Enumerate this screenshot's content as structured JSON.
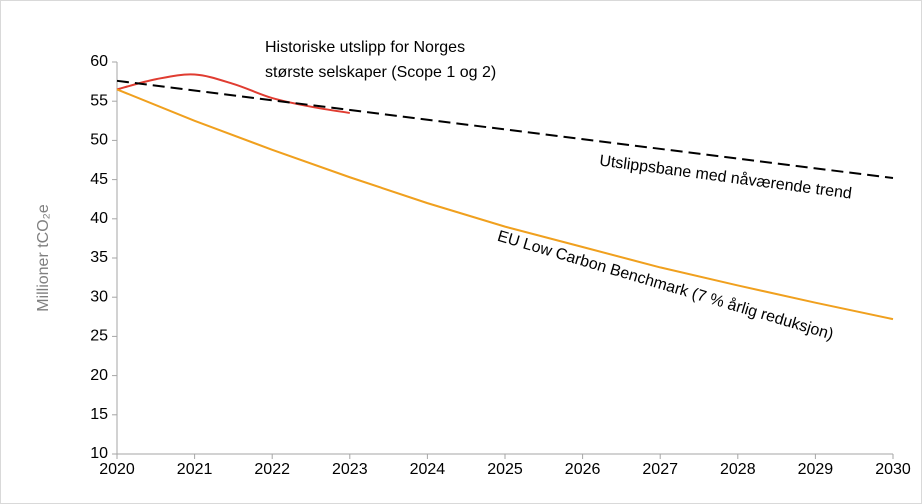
{
  "chart_data": {
    "type": "line",
    "y_label": "Millioner tCO₂e",
    "annotations": [
      [
        "Historiske utslipp for Norges",
        "største selskaper (Scope 1 og 2)"
      ],
      "Utslippsbane med nåværende trend",
      "EU Low Carbon Benchmark (7 % årlig reduksjon)"
    ],
    "series": [
      {
        "color": "#e03c31",
        "smooth": true,
        "x": [
          2020,
          2020.5,
          2021,
          2021.5,
          2022,
          2022.5,
          2023
        ],
        "values": [
          56.5,
          57.8,
          58.4,
          57.2,
          55.4,
          54.3,
          53.5
        ]
      },
      {
        "color": "#000000",
        "dash": true,
        "x": [
          2020,
          2030
        ],
        "values": [
          57.6,
          45.2
        ]
      },
      {
        "color": "#f0a01e",
        "x": [
          2020,
          2021,
          2022,
          2023,
          2024,
          2025,
          2026,
          2027,
          2028,
          2029,
          2030
        ],
        "values": [
          56.5,
          52.5,
          48.8,
          45.3,
          42.0,
          39.0,
          36.4,
          33.8,
          31.5,
          29.3,
          27.2
        ]
      }
    ],
    "xlim": [
      2020,
      2030
    ],
    "xticks": [
      2020,
      2021,
      2022,
      2023,
      2024,
      2025,
      2026,
      2027,
      2028,
      2029,
      2030
    ],
    "ylim": [
      10,
      60
    ],
    "yticks": [
      10,
      15,
      20,
      25,
      30,
      35,
      40,
      45,
      50,
      55,
      60
    ]
  }
}
